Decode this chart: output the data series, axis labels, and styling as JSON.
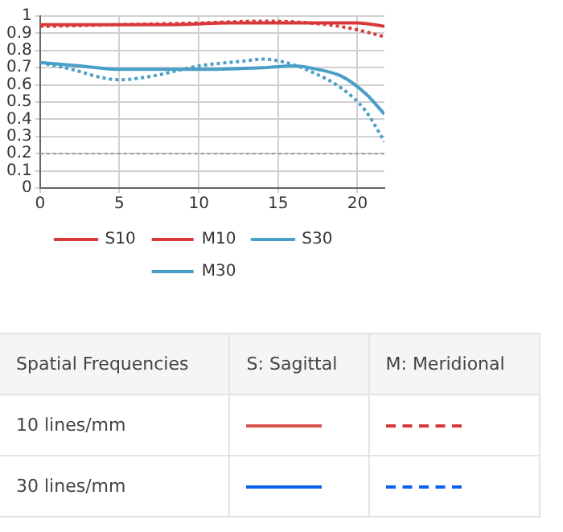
{
  "chart_data": [
    {
      "type": "line",
      "xlim": [
        0,
        21.7
      ],
      "xticks": [
        0,
        5,
        10,
        15,
        20
      ],
      "ylim": [
        0,
        1
      ],
      "yticks": [
        0,
        0.1,
        0.2,
        0.3,
        0.4,
        0.5,
        0.6,
        0.7,
        0.8,
        0.9,
        1
      ],
      "grid": true,
      "legend": "bottom",
      "marker": "none",
      "ref_lines": [
        {
          "axis": "y",
          "value": 0.2,
          "color": "#999999",
          "line_style": "dotted"
        }
      ],
      "series": [
        {
          "name": "S10",
          "color": "#d9383a",
          "line_style": "solid",
          "x": [
            0,
            4,
            8,
            12,
            15,
            17,
            19,
            20,
            21.7
          ],
          "values": [
            0.95,
            0.95,
            0.95,
            0.96,
            0.96,
            0.96,
            0.96,
            0.96,
            0.94
          ]
        },
        {
          "name": "M10",
          "color": "#d9383a",
          "line_style": "dotted",
          "x": [
            0,
            5,
            10,
            14,
            17,
            19.5,
            21.7
          ],
          "values": [
            0.94,
            0.95,
            0.96,
            0.97,
            0.96,
            0.93,
            0.88
          ]
        },
        {
          "name": "S30",
          "color": "#4a9fc9",
          "line_style": "solid",
          "x": [
            0,
            2.5,
            5,
            8,
            10,
            14,
            16,
            17.5,
            19,
            20.5,
            21.7
          ],
          "values": [
            0.73,
            0.71,
            0.69,
            0.69,
            0.69,
            0.7,
            0.71,
            0.69,
            0.65,
            0.55,
            0.43
          ]
        },
        {
          "name": "M30",
          "color": "#4a9fc9",
          "line_style": "dotted",
          "x": [
            0,
            2,
            4,
            5,
            7,
            9,
            10,
            13,
            14,
            15.5,
            17,
            19,
            20.5,
            21.7
          ],
          "values": [
            0.73,
            0.69,
            0.64,
            0.63,
            0.65,
            0.69,
            0.71,
            0.74,
            0.75,
            0.73,
            0.68,
            0.58,
            0.45,
            0.27
          ]
        }
      ]
    },
    {
      "type": "other",
      "annotations": [
        "Spatial Frequencies",
        "S: Sagittal",
        "M: Meridional",
        "10 lines/mm",
        "30 lines/mm"
      ]
    }
  ]
}
